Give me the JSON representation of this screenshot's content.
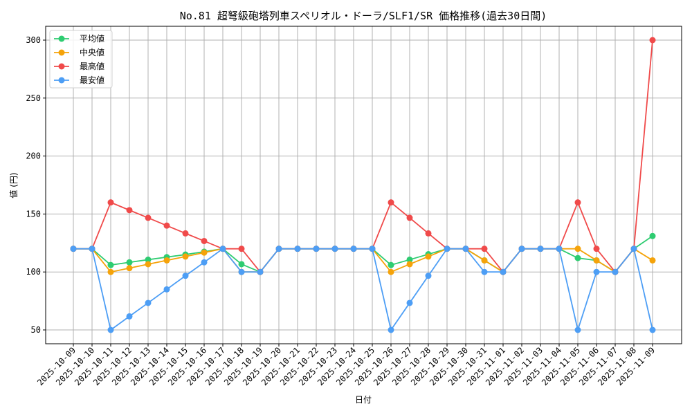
{
  "chart_data": {
    "type": "line",
    "title": "No.81 超弩級砲塔列車スペリオル・ドーラ/SLF1/SR 価格推移(過去30日間)",
    "xlabel": "日付",
    "ylabel": "値 (円)",
    "ylim": [
      37,
      312
    ],
    "yticks": [
      50,
      100,
      150,
      200,
      250,
      300
    ],
    "grid": true,
    "legend_position": "upper left",
    "x": [
      "2025-10-09",
      "2025-10-10",
      "2025-10-11",
      "2025-10-12",
      "2025-10-13",
      "2025-10-14",
      "2025-10-15",
      "2025-10-16",
      "2025-10-17",
      "2025-10-18",
      "2025-10-19",
      "2025-10-20",
      "2025-10-21",
      "2025-10-22",
      "2025-10-23",
      "2025-10-24",
      "2025-10-25",
      "2025-10-26",
      "2025-10-27",
      "2025-10-28",
      "2025-10-29",
      "2025-10-30",
      "2025-10-31",
      "2025-11-01",
      "2025-11-02",
      "2025-11-03",
      "2025-11-04",
      "2025-11-05",
      "2025-11-06",
      "2025-11-07",
      "2025-11-08",
      "2025-11-09"
    ],
    "series": [
      {
        "name": "平均値",
        "color": "#2ecc71",
        "values": [
          120,
          120,
          106,
          108.3,
          110.6,
          112.8,
          115,
          117.5,
          120,
          106.7,
          100,
          120,
          120,
          120,
          120,
          120,
          120,
          106,
          110.6,
          115.3,
          120,
          120,
          110,
          100,
          120,
          120,
          120,
          112,
          110,
          100,
          120,
          131
        ]
      },
      {
        "name": "中央値",
        "color": "#f5a30a",
        "values": [
          120,
          120,
          100,
          103.3,
          106.7,
          110,
          113.3,
          116.7,
          120,
          100,
          100,
          120,
          120,
          120,
          120,
          120,
          120,
          100,
          106.7,
          113.3,
          120,
          120,
          110,
          100,
          120,
          120,
          120,
          120,
          110,
          100,
          120,
          110
        ]
      },
      {
        "name": "最高値",
        "color": "#f04a4a",
        "values": [
          120,
          120,
          160,
          153.3,
          146.7,
          140,
          133.3,
          126.7,
          120,
          120,
          100,
          120,
          120,
          120,
          120,
          120,
          120,
          160,
          146.7,
          133.3,
          120,
          120,
          120,
          100,
          120,
          120,
          120,
          160,
          120,
          100,
          120,
          300
        ]
      },
      {
        "name": "最安値",
        "color": "#4d9ef5",
        "values": [
          120,
          120,
          50,
          61.7,
          73.3,
          85,
          96.7,
          108.3,
          120,
          100,
          100,
          120,
          120,
          120,
          120,
          120,
          120,
          50,
          73.3,
          96.7,
          120,
          120,
          100,
          100,
          120,
          120,
          120,
          50,
          100,
          100,
          120,
          50
        ]
      }
    ]
  }
}
